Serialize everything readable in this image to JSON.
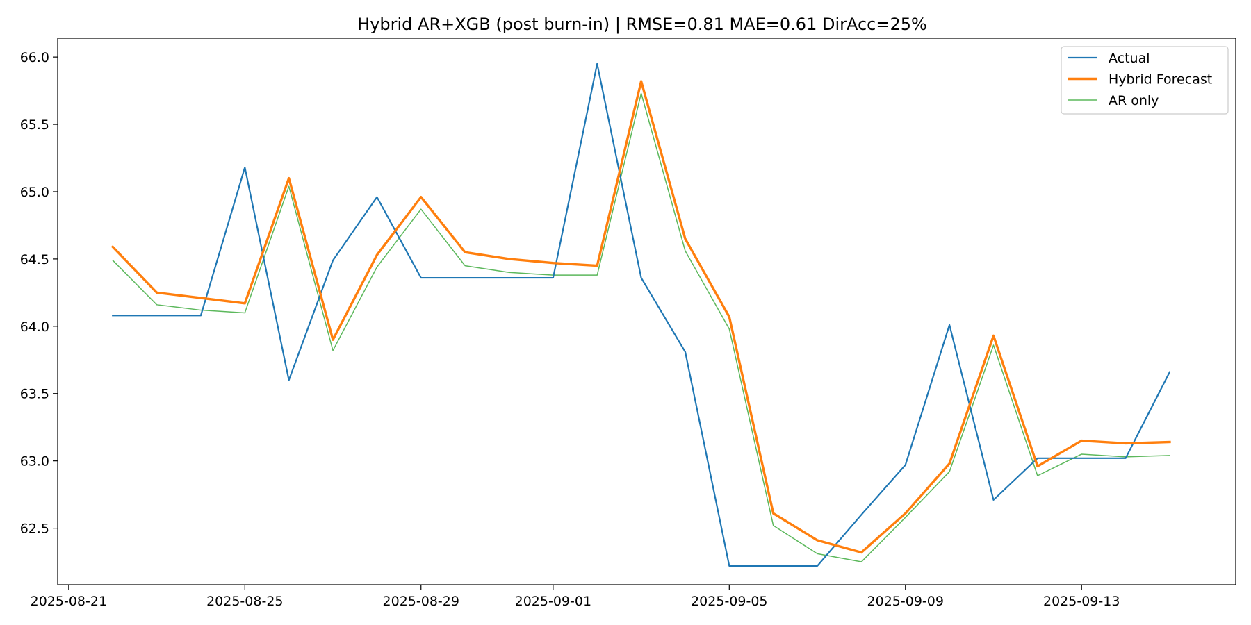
{
  "chart_data": {
    "type": "line",
    "title": "Hybrid AR+XGB (post burn-in)  |  RMSE=0.81  MAE=0.61  DirAcc=25%",
    "xlabel": "",
    "ylabel": "",
    "x": [
      "2025-08-22",
      "2025-08-23",
      "2025-08-24",
      "2025-08-25",
      "2025-08-26",
      "2025-08-27",
      "2025-08-28",
      "2025-08-29",
      "2025-08-30",
      "2025-08-31",
      "2025-09-01",
      "2025-09-02",
      "2025-09-03",
      "2025-09-04",
      "2025-09-05",
      "2025-09-06",
      "2025-09-07",
      "2025-09-08",
      "2025-09-09",
      "2025-09-10",
      "2025-09-11",
      "2025-09-12",
      "2025-09-13",
      "2025-09-14",
      "2025-09-15"
    ],
    "xlim": [
      "2025-08-20T18:00",
      "2025-09-16T12:00"
    ],
    "xticks": [
      "2025-08-21",
      "2025-08-25",
      "2025-08-29",
      "2025-09-01",
      "2025-09-05",
      "2025-09-09",
      "2025-09-13"
    ],
    "ylim": [
      62.08,
      66.14
    ],
    "yticks": [
      62.5,
      63.0,
      63.5,
      64.0,
      64.5,
      65.0,
      65.5,
      66.0
    ],
    "ytick_labels": [
      "62.5",
      "63.0",
      "63.5",
      "64.0",
      "64.5",
      "65.0",
      "65.5",
      "66.0"
    ],
    "grid": false,
    "legend_position": "top-right",
    "series": [
      {
        "name": "Actual",
        "color": "#1f77b4",
        "width": "normal",
        "values": [
          64.08,
          64.08,
          64.08,
          65.18,
          63.6,
          64.49,
          64.96,
          64.36,
          64.36,
          64.36,
          64.36,
          65.95,
          64.36,
          63.81,
          62.22,
          62.22,
          62.22,
          62.6,
          62.97,
          64.01,
          62.71,
          63.02,
          63.02,
          63.02,
          63.66
        ]
      },
      {
        "name": "Hybrid Forecast",
        "color": "#ff7f0e",
        "width": "thick",
        "values": [
          64.59,
          64.25,
          64.21,
          64.17,
          65.1,
          63.9,
          64.53,
          64.96,
          64.55,
          64.5,
          64.47,
          64.45,
          65.82,
          64.65,
          64.07,
          62.61,
          62.41,
          62.32,
          62.61,
          62.98,
          63.93,
          62.96,
          63.15,
          63.13,
          63.14
        ]
      },
      {
        "name": "AR only",
        "color": "#5cb85c",
        "width": "thin",
        "values": [
          64.49,
          64.16,
          64.12,
          64.1,
          65.04,
          63.82,
          64.44,
          64.87,
          64.45,
          64.4,
          64.38,
          64.38,
          65.73,
          64.56,
          63.98,
          62.52,
          62.31,
          62.25,
          62.58,
          62.92,
          63.86,
          62.89,
          63.05,
          63.03,
          63.04
        ]
      }
    ]
  }
}
